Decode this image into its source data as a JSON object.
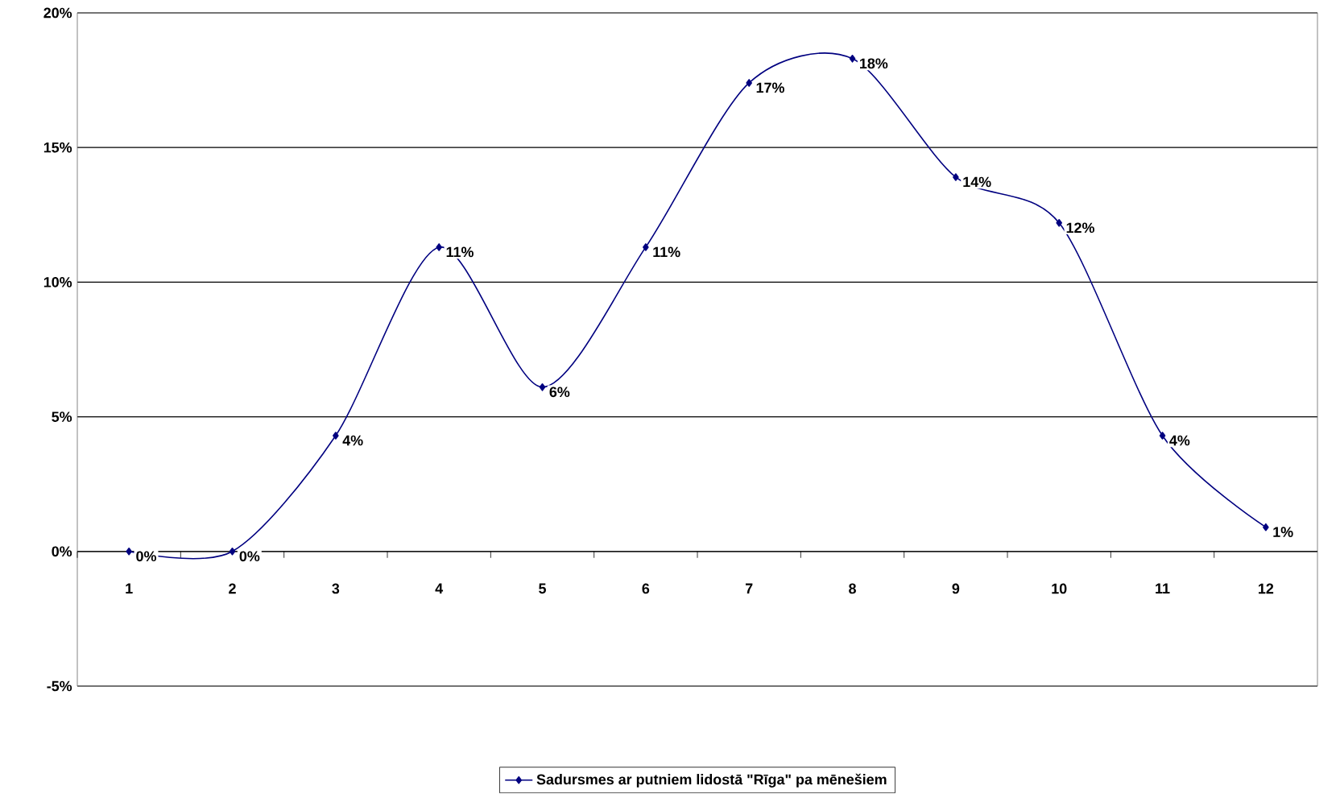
{
  "chart_data": {
    "type": "line",
    "categories": [
      "1",
      "2",
      "3",
      "4",
      "5",
      "6",
      "7",
      "8",
      "9",
      "10",
      "11",
      "12"
    ],
    "series": [
      {
        "name": "Sadursmes ar putniem lidostā \"Rīga\" pa mēnešiem",
        "color": "#000080",
        "values": [
          0,
          0,
          4.3,
          11.3,
          6.1,
          11.3,
          17.4,
          18.3,
          13.9,
          12.2,
          4.3,
          0.9
        ],
        "value_labels": [
          "0%",
          "0%",
          "4%",
          "11%",
          "6%",
          "11%",
          "17%",
          "18%",
          "14%",
          "12%",
          "4%",
          "1%"
        ]
      }
    ],
    "ylim": [
      -5,
      20
    ],
    "yticks": [
      {
        "value": -5,
        "label": "-5%"
      },
      {
        "value": 0,
        "label": "0%"
      },
      {
        "value": 5,
        "label": "5%"
      },
      {
        "value": 10,
        "label": "10%"
      },
      {
        "value": 15,
        "label": "15%"
      },
      {
        "value": 20,
        "label": "20%"
      }
    ],
    "grid": "y",
    "legend": "bottom",
    "marker": "diamond",
    "line_style": "solid"
  }
}
